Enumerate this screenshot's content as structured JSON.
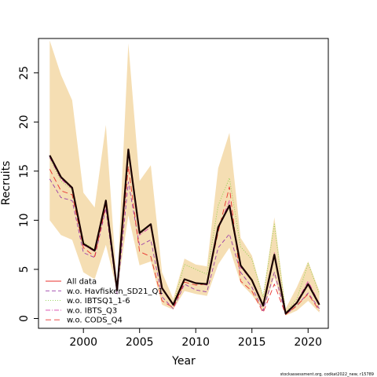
{
  "chart_data": {
    "type": "line",
    "xlabel": "Year",
    "ylabel": "Recruits",
    "xlim": [
      1996,
      2021.8
    ],
    "ylim": [
      -1,
      28.5
    ],
    "x_ticks": [
      2000,
      2005,
      2010,
      2015,
      2020
    ],
    "y_ticks": [
      0,
      5,
      10,
      15,
      20,
      25
    ],
    "x": [
      1997,
      1998,
      1999,
      2000,
      2001,
      2002,
      2003,
      2004,
      2005,
      2006,
      2007,
      2008,
      2009,
      2010,
      2011,
      2012,
      2013,
      2014,
      2015,
      2016,
      2017,
      2018,
      2019,
      2020,
      2021
    ],
    "band": {
      "color": "#f5deb3",
      "lower": [
        10.0,
        8.5,
        8.0,
        4.7,
        4.0,
        7.5,
        2.8,
        10.5,
        5.4,
        5.8,
        1.4,
        0.9,
        2.8,
        2.5,
        2.3,
        5.5,
        7.2,
        3.6,
        2.4,
        0.8,
        4.2,
        0.3,
        0.8,
        1.8,
        0.6
      ],
      "upper": [
        28.3,
        24.8,
        22.2,
        12.8,
        11.3,
        19.7,
        3.2,
        28.0,
        14.0,
        15.6,
        4.7,
        2.0,
        6.1,
        5.5,
        5.3,
        15.3,
        18.9,
        8.2,
        6.4,
        2.3,
        10.3,
        1.0,
        3.2,
        5.8,
        2.8
      ]
    },
    "series": [
      {
        "name": "All data",
        "color": "#1a0000",
        "dash": "solid",
        "width": 2.2,
        "legend_color": "#e8322d",
        "values": [
          16.6,
          14.4,
          13.3,
          7.6,
          6.9,
          12.0,
          2.9,
          17.2,
          8.7,
          9.6,
          3.1,
          1.4,
          4.0,
          3.6,
          3.5,
          9.3,
          11.5,
          5.4,
          3.9,
          1.3,
          6.5,
          0.5,
          1.6,
          3.5,
          1.4
        ]
      },
      {
        "name": "w.o. Havfisken_SD21_Q1",
        "color": "#9b3ea7",
        "dash": "5,3",
        "width": 0.9,
        "values": [
          14.2,
          12.3,
          12.0,
          6.7,
          6.2,
          11.2,
          2.5,
          13.9,
          7.4,
          8.0,
          2.2,
          1.0,
          3.5,
          2.9,
          2.7,
          7.2,
          8.6,
          4.7,
          3.2,
          0.8,
          4.7,
          0.4,
          1.3,
          2.6,
          1.0
        ]
      },
      {
        "name": "w.o. IBTSQ1_1-6",
        "color": "#8fd14f",
        "dash": "1,2",
        "width": 1.0,
        "values": [
          16.3,
          14.0,
          13.1,
          7.8,
          7.0,
          12.1,
          3.0,
          17.0,
          8.9,
          9.5,
          3.1,
          1.5,
          5.5,
          5.0,
          4.5,
          11.5,
          14.3,
          7.3,
          6.0,
          2.2,
          9.6,
          0.6,
          2.0,
          5.6,
          2.5
        ]
      },
      {
        "name": "w.o. IBTS_Q3",
        "color": "#d63fa8",
        "dash": "6,2,1,2",
        "width": 0.9,
        "values": [
          16.4,
          14.2,
          13.2,
          7.5,
          6.8,
          11.8,
          2.9,
          16.9,
          8.5,
          9.3,
          3.0,
          1.4,
          4.0,
          3.6,
          3.4,
          9.1,
          12.0,
          5.2,
          3.9,
          1.3,
          6.7,
          0.5,
          1.7,
          3.8,
          1.5
        ]
      },
      {
        "name": "w.o. CODS_Q4",
        "color": "#e8322d",
        "dash": "7,4",
        "width": 0.9,
        "values": [
          15.2,
          13.0,
          12.6,
          7.2,
          6.3,
          11.5,
          2.8,
          15.5,
          6.8,
          6.3,
          1.8,
          1.1,
          3.7,
          3.4,
          3.5,
          8.8,
          13.4,
          3.8,
          2.8,
          0.6,
          3.5,
          0.4,
          1.3,
          2.5,
          0.8
        ]
      }
    ],
    "legend_position": "bottom-left",
    "grid": false
  },
  "footnote": "stockassessment.org, codkat2022_new, r15789"
}
